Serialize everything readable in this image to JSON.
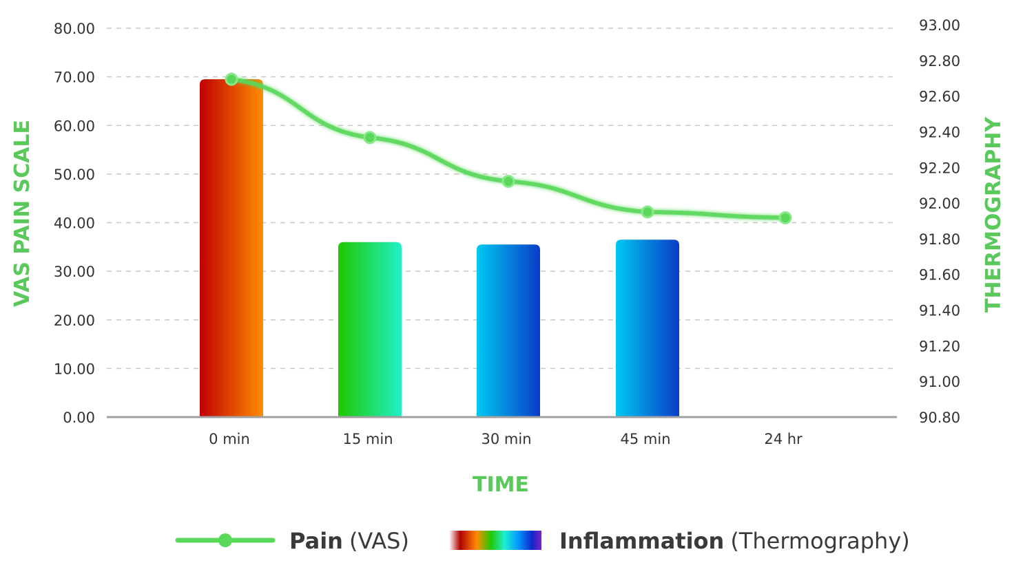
{
  "chart_data": {
    "type": "bar+line",
    "categories": [
      "0 min",
      "15 min",
      "30 min",
      "45 min",
      "24 hr"
    ],
    "xlabel": "TIME",
    "ylabel_left": "VAS PAIN SCALE",
    "ylabel_right": "THERMOGRAPHY",
    "left_axis": {
      "min": 0,
      "max": 80,
      "step": 10,
      "ticks": [
        "0.00",
        "10.00",
        "20.00",
        "30.00",
        "40.00",
        "50.00",
        "60.00",
        "70.00",
        "80.00"
      ]
    },
    "right_axis": {
      "min": 90.8,
      "max": 93.0,
      "step": 0.2,
      "ticks": [
        "90.80",
        "91.00",
        "91.20",
        "91.40",
        "91.60",
        "91.80",
        "92.00",
        "92.20",
        "92.40",
        "92.60",
        "92.80",
        "93.00"
      ]
    },
    "grid": true,
    "series": [
      {
        "name": "Inflammation",
        "name_suffix": "(Thermography)",
        "type": "bar",
        "axis": "left",
        "values": [
          69.5,
          36.0,
          35.5,
          36.5,
          null
        ],
        "colors": [
          [
            "#c00000",
            "#ff8c00"
          ],
          [
            "#1fc800",
            "#20f0c8"
          ],
          [
            "#00c8f0",
            "#0a3cc8"
          ],
          [
            "#00c8f0",
            "#0a3cc8"
          ],
          null
        ]
      },
      {
        "name": "Pain",
        "name_suffix": "(VAS)",
        "type": "line",
        "axis": "left",
        "values": [
          69.5,
          57.5,
          48.5,
          42.2,
          41.0
        ],
        "color": "#5ad85a"
      }
    ],
    "legend": {
      "position": "bottom-center"
    }
  }
}
